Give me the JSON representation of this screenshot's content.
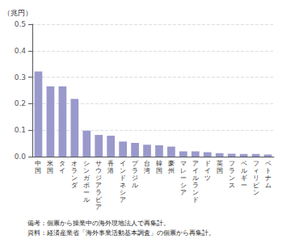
{
  "chart_data": {
    "type": "bar",
    "categories": [
      "中\n国",
      "米\n国",
      "タ\nイ",
      "オ\nラ\nン\nダ",
      "シ\nン\nガ\nポ\nー\nル",
      "サ\nウ\nジ\nア\nラ\nビ\nア",
      "香\n港",
      "イ\nン\nド\nネ\nシ\nア",
      "ブ\nラ\nジ\nル",
      "台\n湾",
      "韓\n国",
      "豪\n州",
      "マ\nレ\nー\nシ\nア",
      "ア\nイ\nル\nラ\nン\nド",
      "ド\nイ\nツ",
      "英\n国",
      "フ\nラ\nン\nス",
      "ベ\nル\nギ\nー",
      "フ\nィ\nリ\nピ\nン",
      "ベ\nト\nナ\nム"
    ],
    "values": [
      0.322,
      0.265,
      0.265,
      0.218,
      0.098,
      0.082,
      0.079,
      0.057,
      0.052,
      0.045,
      0.043,
      0.038,
      0.02,
      0.02,
      0.017,
      0.013,
      0.011,
      0.01,
      0.01,
      0.008
    ],
    "color": "#9999cc",
    "ylabel": "（兆円）",
    "ylim": [
      0,
      0.5
    ],
    "yticks": [
      {
        "value": 0.0,
        "label": "0.0"
      },
      0.1,
      0.2,
      0.3,
      0.4,
      0.5
    ],
    "grid": true,
    "annotations": [
      "備考：個票から操業中の海外現地法人で再集計。",
      "資料：経済産業省「海外事業活動基本調査」の個票から再集計。"
    ]
  }
}
